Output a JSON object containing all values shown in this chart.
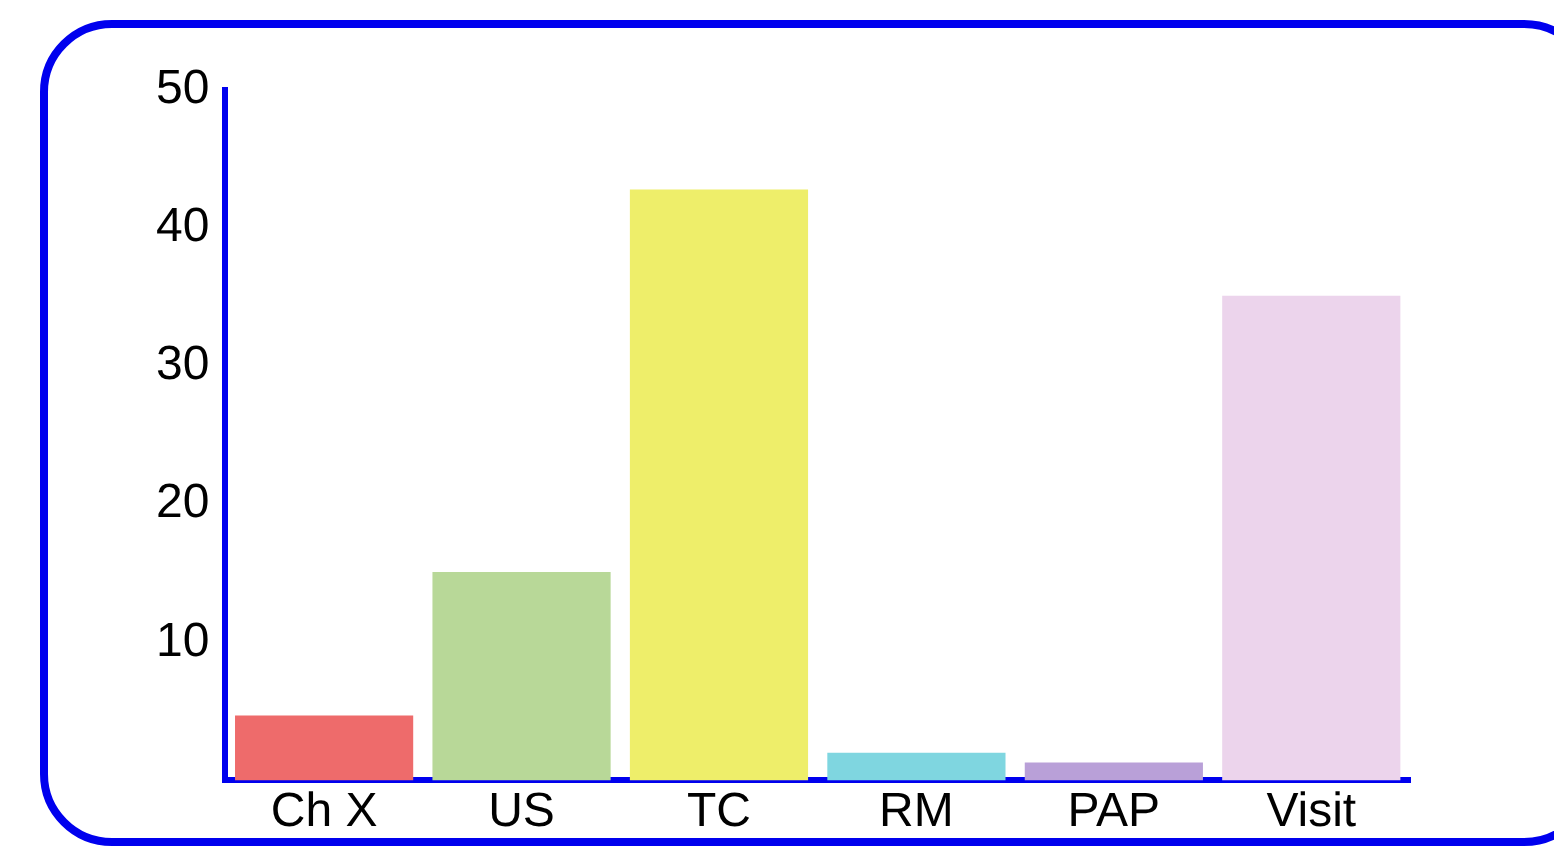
{
  "chart_data": {
    "type": "bar",
    "categories": [
      "Ch X",
      "US",
      "TC",
      "RM",
      "PAP",
      "Visit"
    ],
    "values": [
      4.7,
      15.1,
      42.8,
      2.0,
      1.3,
      35.1
    ],
    "colors": [
      "#ee6b6b",
      "#b8d898",
      "#eeee6a",
      "#7fd6e0",
      "#b9a0d8",
      "#ecd4ec"
    ],
    "ylim": [
      0,
      50
    ],
    "yticks": [
      10,
      20,
      30,
      40,
      50
    ],
    "grid": false,
    "legend": false
  }
}
